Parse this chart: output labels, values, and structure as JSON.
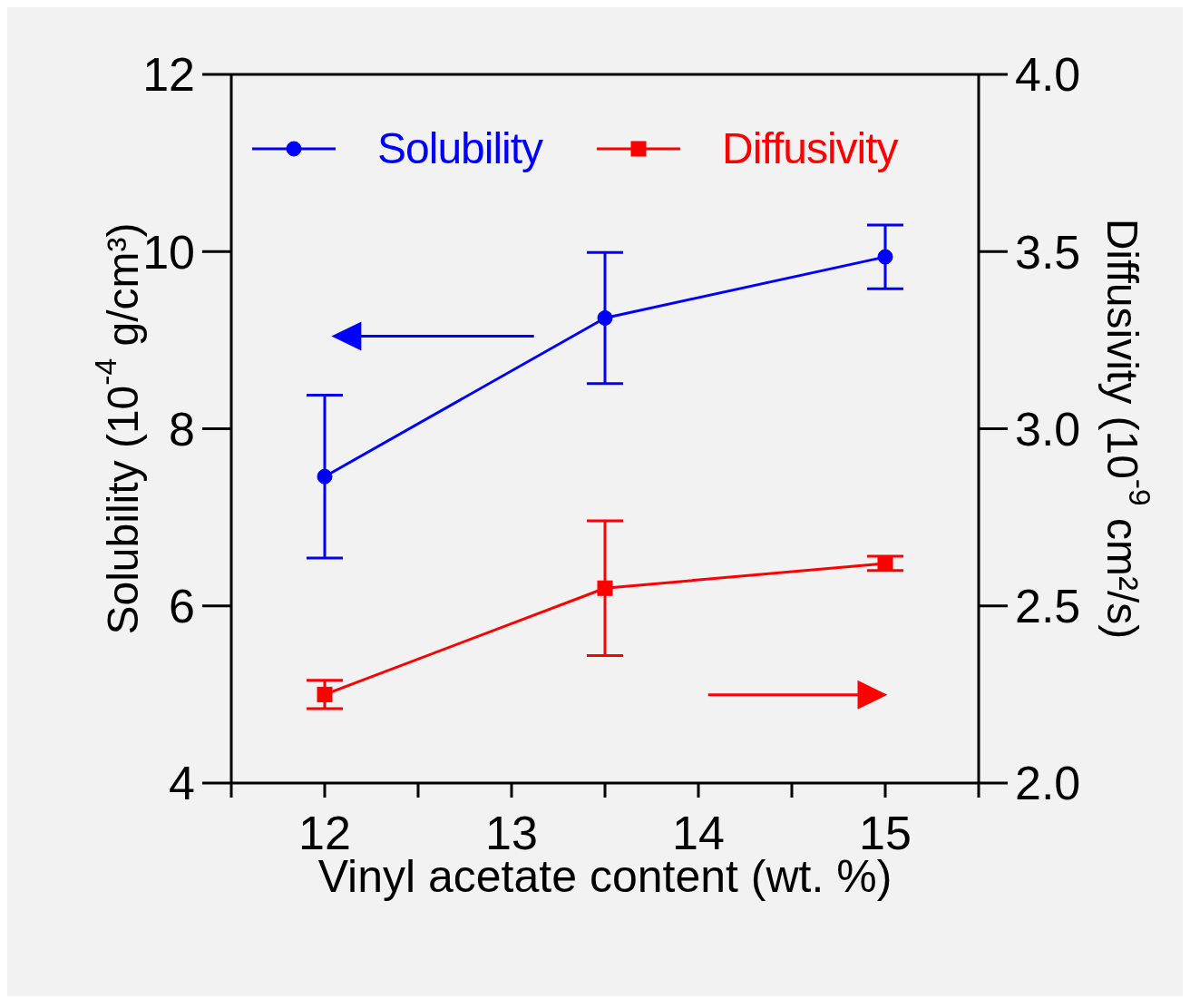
{
  "chart_data": {
    "type": "line",
    "xlabel": "Vinyl acetate content (wt. %)",
    "ylabel": "Solubility (10$^{-4}$ g/cm³)",
    "y2label": "Diffusivity (10$^{-9}$ cm²/s)",
    "x": [
      12,
      13.5,
      15
    ],
    "series": [
      {
        "name": "Solubility",
        "color": "#0000ff",
        "marker": "circle",
        "values": [
          7.46,
          9.25,
          9.94
        ],
        "errors": [
          0.92,
          0.74,
          0.36
        ]
      },
      {
        "name": "Diffusivity",
        "color": "#ff0000",
        "marker": "square",
        "axis": "y2",
        "values": [
          2.25,
          2.55,
          2.62
        ],
        "errors": [
          0.04,
          0.19,
          0.02
        ]
      }
    ],
    "xlim": [
      11.5,
      15.5
    ],
    "xticks": [
      {
        "value": 11.5,
        "label": null
      },
      12,
      {
        "value": 12.5,
        "label": null
      },
      13,
      {
        "value": 13.5,
        "label": null
      },
      14,
      {
        "value": 14.5,
        "label": null
      },
      15,
      {
        "value": 15.5,
        "label": null
      }
    ],
    "ylim": [
      4,
      12
    ],
    "yticks": [
      4,
      6,
      8,
      10,
      12
    ],
    "y2lim": [
      2.0,
      4.0
    ],
    "y2ticks": [
      {
        "value": 2,
        "label": "2.0"
      },
      {
        "value": 2.5,
        "label": "2.5"
      },
      {
        "value": 3,
        "label": "3.0"
      },
      {
        "value": 3.5,
        "label": "3.5"
      },
      {
        "value": 4,
        "label": "4.0"
      }
    ],
    "legend": "top",
    "line_style": "solid"
  }
}
